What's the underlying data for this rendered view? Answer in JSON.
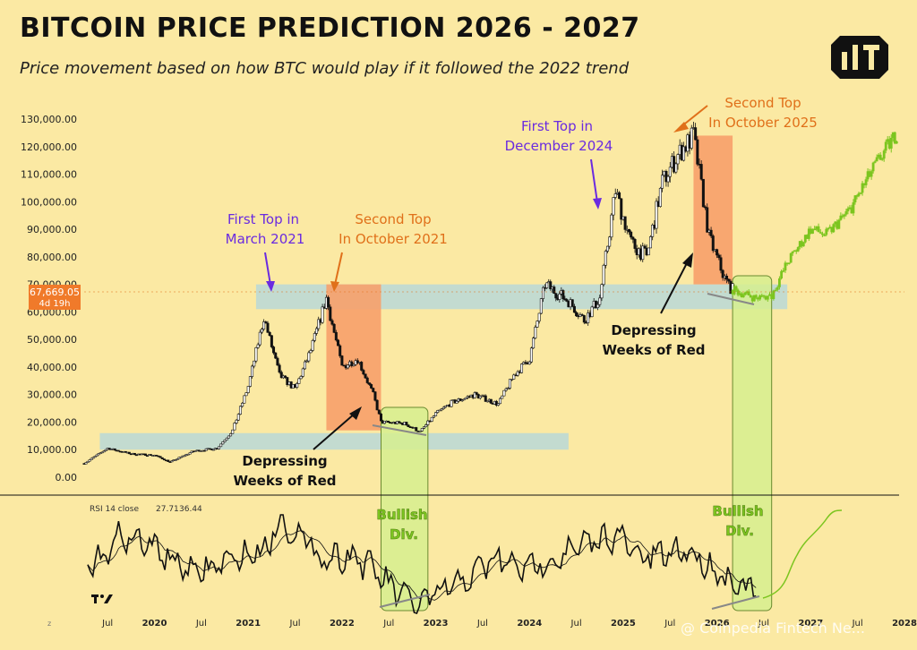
{
  "title": "BITCOIN PRICE PREDICTION 2026 - 2027",
  "subtitle": "Price movement based on how BTC would play if it followed the 2022 trend",
  "logo_icon": "brand-logo-icon",
  "colors": {
    "background": "#FBE9A3",
    "bull": "#1a1a1a",
    "projection": "#7CC51F",
    "zone_band": "#B9D8D8",
    "red_zone": "#F7A06A",
    "green_zone": "#D6EE8F",
    "purple_text": "#6A2BE0",
    "orange_text": "#E0701A",
    "green_text": "#7CC51F",
    "price_tag": "#F07A2A"
  },
  "price_tag": {
    "value": "67,669.05",
    "sub": "4d 19h"
  },
  "chart_data": [
    {
      "type": "candlestick",
      "y_ticks": [
        "130,000.00",
        "120,000.00",
        "110,000.00",
        "100,000.00",
        "90,000.00",
        "80,000.00",
        "70,000.00",
        "60,000.00",
        "50,000.00",
        "40,000.00",
        "30,000.00",
        "20,000.00",
        "10,000.00",
        "0.00"
      ],
      "ylim": [
        0,
        130000
      ],
      "x_ticks": [
        "Jul",
        "2020",
        "Jul",
        "2021",
        "Jul",
        "2022",
        "Jul",
        "2023",
        "Jul",
        "2024",
        "Jul",
        "2025",
        "Jul",
        "2026",
        "Jul",
        "2027",
        "Jul",
        "2028"
      ],
      "x_range": [
        "2019-04",
        "2028-01"
      ],
      "series": [
        {
          "points": [
            [
              "2019-04",
              5000
            ],
            [
              "2019-07",
              10500
            ],
            [
              "2019-10",
              8500
            ],
            [
              "2020-01",
              8000
            ],
            [
              "2020-03",
              5500
            ],
            [
              "2020-06",
              9500
            ],
            [
              "2020-09",
              10500
            ],
            [
              "2020-11",
              17000
            ],
            [
              "2021-01",
              33000
            ],
            [
              "2021-03",
              58000
            ],
            [
              "2021-05",
              37000
            ],
            [
              "2021-07",
              32000
            ],
            [
              "2021-09",
              46000
            ],
            [
              "2021-11",
              65000
            ],
            [
              "2022-01",
              40000
            ],
            [
              "2022-03",
              43000
            ],
            [
              "2022-05",
              30000
            ],
            [
              "2022-06",
              20000
            ],
            [
              "2022-09",
              19500
            ],
            [
              "2022-11",
              16500
            ],
            [
              "2023-01",
              23000
            ],
            [
              "2023-03",
              27000
            ],
            [
              "2023-06",
              30000
            ],
            [
              "2023-09",
              26500
            ],
            [
              "2023-11",
              37000
            ],
            [
              "2024-01",
              43000
            ],
            [
              "2024-03",
              70000
            ],
            [
              "2024-06",
              64000
            ],
            [
              "2024-08",
              57000
            ],
            [
              "2024-10",
              65000
            ],
            [
              "2024-12",
              104000
            ],
            [
              "2025-02",
              85000
            ],
            [
              "2025-04",
              80000
            ],
            [
              "2025-06",
              107000
            ],
            [
              "2025-08",
              117000
            ],
            [
              "2025-10",
              124000
            ],
            [
              "2025-12",
              87000
            ],
            [
              "2026-02",
              72000
            ],
            [
              "2026-03",
              68000
            ]
          ]
        },
        {
          "name": "",
          "projection": true,
          "points": [
            [
              "2026-03",
              68000
            ],
            [
              "2026-06",
              65000
            ],
            [
              "2026-08",
              66000
            ],
            [
              "2026-10",
              78000
            ],
            [
              "2027-01",
              90000
            ],
            [
              "2027-03",
              88000
            ],
            [
              "2027-06",
              97000
            ],
            [
              "2027-09",
              112000
            ],
            [
              "2027-12",
              125000
            ]
          ]
        }
      ],
      "zones": [
        {
          "kind": "band",
          "y_range": [
            61000,
            70000
          ],
          "x_range": [
            "2021-02",
            "2026-10"
          ]
        },
        {
          "kind": "band",
          "y_range": [
            10000,
            16000
          ],
          "x_range": [
            "2019-06",
            "2024-06"
          ]
        },
        {
          "kind": "red",
          "y_range": [
            17000,
            70000
          ],
          "x_range": [
            "2021-11",
            "2022-06"
          ]
        },
        {
          "kind": "red",
          "y_range": [
            70000,
            124000
          ],
          "x_range": [
            "2025-10",
            "2026-03"
          ]
        }
      ],
      "annotations": {
        "first_top_2021": {
          "line1": "First Top in",
          "line2": "March 2021"
        },
        "second_top_2021": {
          "line1": "Second Top",
          "line2": "In October 2021"
        },
        "first_top_2024": {
          "line1": "First Top in",
          "line2": "December 2024"
        },
        "second_top_2025": {
          "line1": "Second Top",
          "line2": "In October 2025"
        },
        "depressing_1": {
          "line1": "Depressing",
          "line2": "Weeks of Red"
        },
        "depressing_2": {
          "line1": "Depressing",
          "line2": "Weeks of Red"
        }
      }
    },
    {
      "type": "line",
      "label": "RSI 14 close",
      "values_shown": [
        "27.71",
        "36.44"
      ],
      "annotations": {
        "bullish_1": {
          "line1": "Bullish",
          "line2": "Div."
        },
        "bullish_2": {
          "line1": "Bullish",
          "line2": "Div."
        }
      }
    }
  ],
  "watermark": "@ Coinpedia Fintech Ne..."
}
